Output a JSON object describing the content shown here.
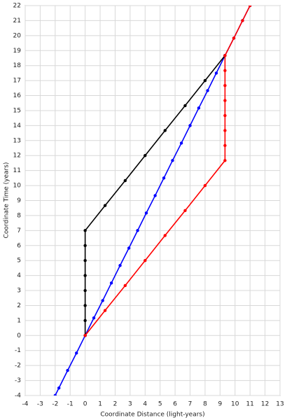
{
  "chart_data": {
    "type": "line",
    "xlabel": "Coordinate Distance (light-years)",
    "ylabel": "Coordinate Time (years)",
    "xlim": [
      -4,
      13
    ],
    "ylim": [
      -4,
      22
    ],
    "xticks": [
      -4,
      -3,
      -2,
      -1,
      0,
      1,
      2,
      3,
      4,
      5,
      6,
      7,
      8,
      9,
      10,
      11,
      12,
      13
    ],
    "yticks": [
      -4,
      -3,
      -2,
      -1,
      0,
      1,
      2,
      3,
      4,
      5,
      6,
      7,
      8,
      9,
      10,
      11,
      12,
      13,
      14,
      15,
      16,
      17,
      18,
      19,
      20,
      21,
      22
    ],
    "grid": true,
    "series": [
      {
        "color": "#0000ff",
        "x": [
          -2,
          -1.75,
          -1.17,
          -0.58,
          0,
          0.58,
          1.17,
          1.75,
          2.33,
          2.92,
          3.5,
          4.08,
          4.67,
          5.25,
          5.83,
          6.42,
          7,
          7.58,
          8.17,
          8.75,
          9.33,
          9.92,
          10.5,
          11
        ],
        "values": [
          -4,
          -3.5,
          -2.33,
          -1.17,
          0,
          1.17,
          2.33,
          3.5,
          4.67,
          5.83,
          7,
          8.17,
          9.33,
          10.5,
          11.67,
          12.83,
          14,
          15.17,
          16.33,
          17.5,
          18.67,
          19.83,
          21,
          22
        ]
      },
      {
        "color": "#000000",
        "x": [
          0,
          0,
          0,
          0,
          0,
          0,
          0,
          0,
          1.33,
          2.67,
          4,
          5.33,
          6.67,
          8,
          9.33
        ],
        "values": [
          0,
          1,
          2,
          3,
          4,
          5,
          6,
          7,
          8.67,
          10.33,
          12,
          13.67,
          15.33,
          17,
          18.67
        ]
      },
      {
        "color": "#ff0000",
        "x": [
          0,
          1.33,
          2.67,
          4,
          5.33,
          6.67,
          8,
          9.33,
          9.33,
          9.33,
          9.33,
          9.33,
          9.33,
          9.33,
          9.33,
          9.92,
          10.5,
          11
        ],
        "values": [
          0,
          1.67,
          3.33,
          5,
          6.67,
          8.33,
          10,
          11.67,
          12.67,
          13.67,
          14.67,
          15.67,
          16.67,
          17.67,
          18.67,
          19.83,
          21,
          22
        ]
      }
    ]
  }
}
